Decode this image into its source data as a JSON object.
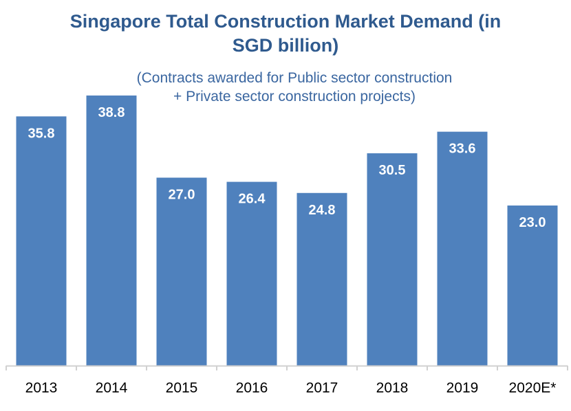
{
  "chart_data": {
    "type": "bar",
    "title_line1": "Singapore Total Construction Market Demand (in",
    "title_line2": "SGD billion)",
    "subtitle_line1": "(Contracts awarded for Public sector construction",
    "subtitle_line2": "+ Private sector construction projects)",
    "categories": [
      "2013",
      "2014",
      "2015",
      "2016",
      "2017",
      "2018",
      "2019",
      "2020E*"
    ],
    "values": [
      35.8,
      38.8,
      27.0,
      26.4,
      24.8,
      30.5,
      33.6,
      23.0
    ],
    "xlabel": "",
    "ylabel": "",
    "ylim": [
      0,
      38.8
    ],
    "grid": false,
    "bar_color": "#4F81BD",
    "title_color": "#2F5A8E"
  }
}
